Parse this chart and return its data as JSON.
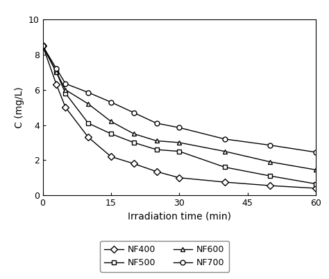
{
  "title": "",
  "xlabel": "Irradiation time (min)",
  "ylabel": "C (mg/L)",
  "xlim": [
    0,
    60
  ],
  "ylim": [
    0,
    10
  ],
  "xticks": [
    0,
    15,
    30,
    45,
    60
  ],
  "yticks": [
    0,
    2,
    4,
    6,
    8,
    10
  ],
  "series": [
    {
      "label": "NF400",
      "marker": "D",
      "color": "#000000",
      "x": [
        0,
        3,
        5,
        10,
        15,
        20,
        25,
        30,
        40,
        50,
        60
      ],
      "y": [
        8.5,
        6.3,
        5.0,
        3.3,
        2.2,
        1.8,
        1.35,
        1.0,
        0.75,
        0.55,
        0.4
      ]
    },
    {
      "label": "NF500",
      "marker": "s",
      "color": "#000000",
      "x": [
        0,
        3,
        5,
        10,
        15,
        20,
        25,
        30,
        40,
        50,
        60
      ],
      "y": [
        8.5,
        7.0,
        5.8,
        4.1,
        3.5,
        3.0,
        2.6,
        2.5,
        1.6,
        1.1,
        0.65
      ]
    },
    {
      "label": "NF600",
      "marker": "^",
      "color": "#000000",
      "x": [
        0,
        3,
        5,
        10,
        15,
        20,
        25,
        30,
        40,
        50,
        60
      ],
      "y": [
        8.5,
        7.0,
        6.0,
        5.2,
        4.2,
        3.5,
        3.1,
        3.0,
        2.5,
        1.9,
        1.45
      ]
    },
    {
      "label": "NF700",
      "marker": "o",
      "color": "#000000",
      "x": [
        0,
        3,
        5,
        10,
        15,
        20,
        25,
        30,
        40,
        50,
        60
      ],
      "y": [
        8.5,
        7.2,
        6.35,
        5.85,
        5.3,
        4.7,
        4.1,
        3.85,
        3.2,
        2.85,
        2.45
      ]
    }
  ],
  "legend_ncol": 2,
  "background_color": "#ffffff",
  "markersize": 5,
  "linewidth": 1.0,
  "xlabel_fontsize": 10,
  "ylabel_fontsize": 10,
  "tick_fontsize": 9,
  "legend_fontsize": 9
}
